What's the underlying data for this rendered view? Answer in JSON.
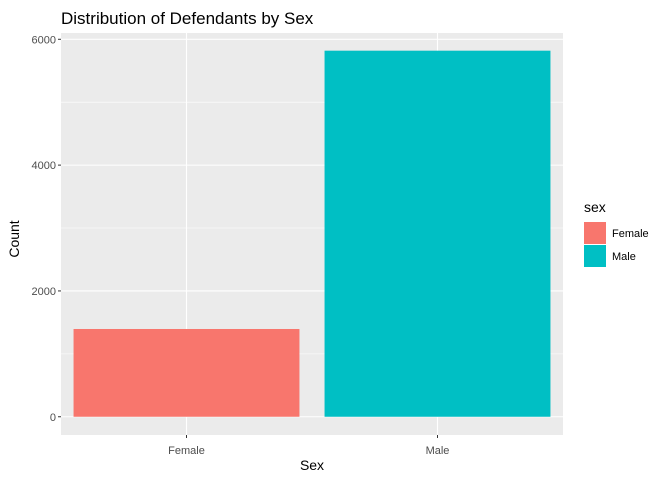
{
  "chart_data": {
    "type": "bar",
    "title": "Distribution of Defendants by Sex",
    "xlabel": "Sex",
    "ylabel": "Count",
    "categories": [
      "Female",
      "Male"
    ],
    "values": [
      1395,
      5819
    ],
    "colors": [
      "#F8766D",
      "#00BFC4"
    ],
    "ylim": [
      -290,
      6100
    ],
    "yticks": [
      0,
      2000,
      4000,
      6000
    ],
    "ytick_labels": [
      "0",
      "2000",
      "4000",
      "6000"
    ],
    "grid": true,
    "panel_background": "#EBEBEB",
    "legend": {
      "title": "sex",
      "placement": "right",
      "entries": [
        {
          "label": "Female",
          "color": "#F8766D"
        },
        {
          "label": "Male",
          "color": "#00BFC4"
        }
      ]
    }
  }
}
